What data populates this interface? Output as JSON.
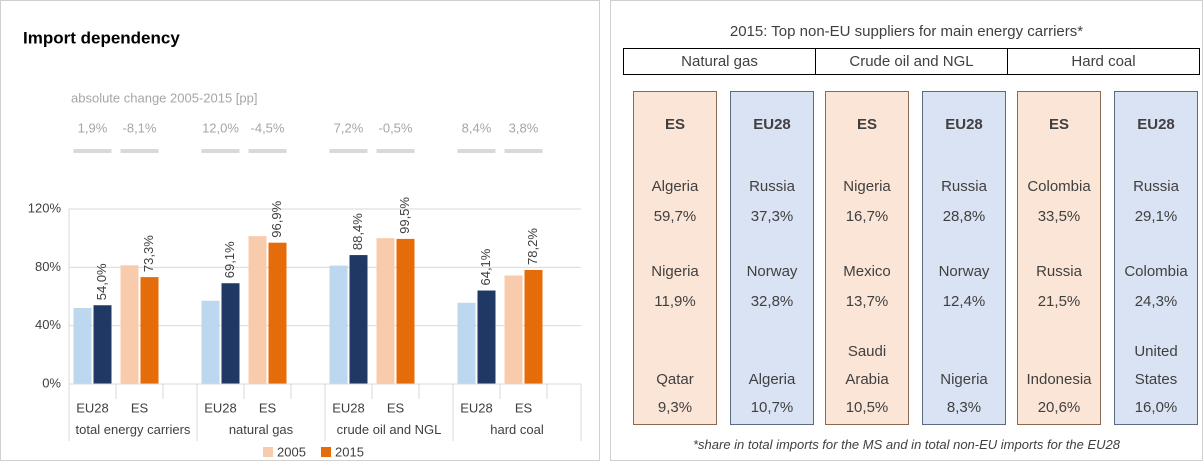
{
  "chart_data": {
    "type": "bar",
    "title": "Import dependency",
    "subtitle": "absolute change 2005-2015 [pp]",
    "categories": [
      "EU28",
      "ES",
      "EU28",
      "ES",
      "EU28",
      "ES",
      "EU28",
      "ES"
    ],
    "groups": [
      "total energy carriers",
      "natural gas",
      "crude oil and NGL",
      "hard coal"
    ],
    "changes": [
      1.9,
      -8.1,
      12.0,
      -4.5,
      7.2,
      -0.5,
      8.4,
      3.8
    ],
    "change_labels": [
      "1,9%",
      "-8,1%",
      "12,0%",
      "-4,5%",
      "7,2%",
      "-0,5%",
      "8,4%",
      "3,8%"
    ],
    "series": [
      {
        "name": "2005",
        "color": "#f8cbad",
        "colors": [
          "#bdd7ee",
          "#f8cbad",
          "#bdd7ee",
          "#f8cbad",
          "#bdd7ee",
          "#f8cbad",
          "#bdd7ee",
          "#f8cbad"
        ],
        "values": [
          52.1,
          81.4,
          57.1,
          101.4,
          81.2,
          100.0,
          55.7,
          74.4
        ]
      },
      {
        "name": "2015",
        "color": "#e46c0a",
        "colors": [
          "#1f3864",
          "#e46c0a",
          "#1f3864",
          "#e46c0a",
          "#1f3864",
          "#e46c0a",
          "#1f3864",
          "#e46c0a"
        ],
        "values": [
          54.0,
          73.3,
          69.1,
          96.9,
          88.4,
          99.5,
          64.1,
          78.2
        ],
        "value_labels": [
          "54,0%",
          "73,3%",
          "69,1%",
          "96,9%",
          "88,4%",
          "99,5%",
          "64,1%",
          "78,2%"
        ]
      }
    ],
    "ylim": [
      0,
      120
    ],
    "yticks": [
      {
        "value": 0,
        "label": "0%"
      },
      {
        "value": 40,
        "label": "40%"
      },
      {
        "value": 80,
        "label": "80%"
      },
      {
        "value": 120,
        "label": "120%"
      }
    ],
    "grid": true,
    "legend": "bottom"
  },
  "table": {
    "title": "2015: Top non-EU suppliers for main energy carriers*",
    "footnote": "*share in total imports for the MS and in total non-EU imports for the EU28",
    "carriers": [
      {
        "name": "Natural gas",
        "columns": [
          {
            "header": "ES",
            "entries": [
              {
                "country": "Algeria",
                "share": "59,7%"
              },
              {
                "country": "Nigeria",
                "share": "11,9%"
              },
              {
                "country": "Qatar",
                "share": "9,3%"
              }
            ]
          },
          {
            "header": "EU28",
            "entries": [
              {
                "country": "Russia",
                "share": "37,3%"
              },
              {
                "country": "Norway",
                "share": "32,8%"
              },
              {
                "country": "Algeria",
                "share": "10,7%"
              }
            ]
          }
        ]
      },
      {
        "name": "Crude oil and NGL",
        "columns": [
          {
            "header": "ES",
            "entries": [
              {
                "country": "Nigeria",
                "share": "16,7%"
              },
              {
                "country": "Mexico",
                "share": "13,7%"
              },
              {
                "country": "Saudi Arabia",
                "share": "10,5%"
              }
            ]
          },
          {
            "header": "EU28",
            "entries": [
              {
                "country": "Russia",
                "share": "28,8%"
              },
              {
                "country": "Norway",
                "share": "12,4%"
              },
              {
                "country": "Nigeria",
                "share": "8,3%"
              }
            ]
          }
        ]
      },
      {
        "name": "Hard coal",
        "columns": [
          {
            "header": "ES",
            "entries": [
              {
                "country": "Colombia",
                "share": "33,5%"
              },
              {
                "country": "Russia",
                "share": "21,5%"
              },
              {
                "country": "Indonesia",
                "share": "20,6%"
              }
            ]
          },
          {
            "header": "EU28",
            "entries": [
              {
                "country": "Russia",
                "share": "29,1%"
              },
              {
                "country": "Colombia",
                "share": "24,3%"
              },
              {
                "country": "United States",
                "share": "16,0%"
              }
            ]
          }
        ]
      }
    ]
  }
}
